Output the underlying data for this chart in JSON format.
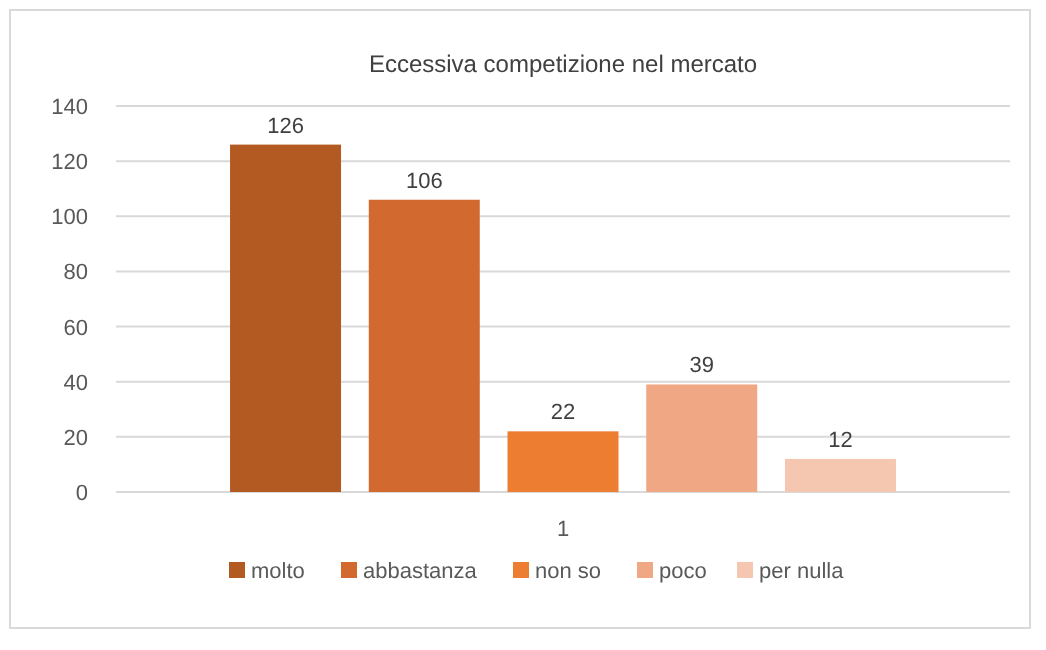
{
  "chart_data": {
    "type": "bar",
    "title": "Eccessiva competizione nel mercato",
    "categories": [
      "1"
    ],
    "series": [
      {
        "name": "molto",
        "color": "#b35a22",
        "values": [
          126
        ]
      },
      {
        "name": "abbastanza",
        "color": "#d2692f",
        "values": [
          106
        ]
      },
      {
        "name": "non so",
        "color": "#ed7d31",
        "values": [
          22
        ]
      },
      {
        "name": "poco",
        "color": "#f0a884",
        "values": [
          39
        ]
      },
      {
        "name": "per nulla",
        "color": "#f5c6b0",
        "values": [
          12
        ]
      }
    ],
    "ylim": [
      0,
      140
    ],
    "yticks": [
      0,
      20,
      40,
      60,
      80,
      100,
      120,
      140
    ],
    "grid": "y",
    "legend": "bottom",
    "data_labels": true
  }
}
